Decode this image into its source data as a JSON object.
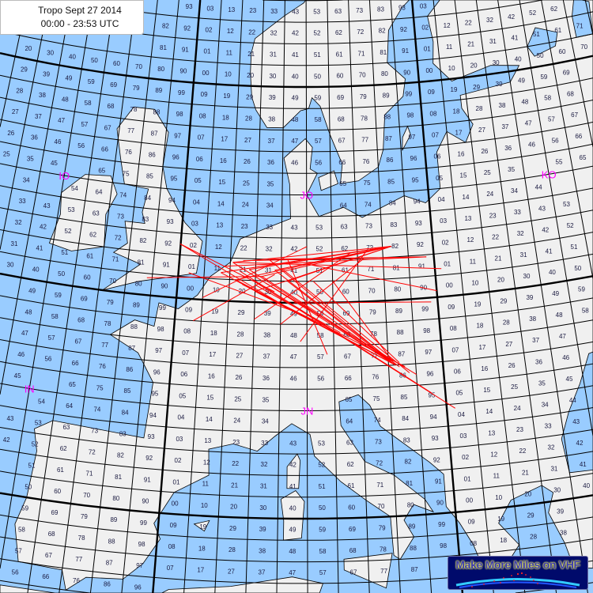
{
  "title": {
    "line1": "Tropo Sept 27 2014",
    "line2": "00:00 - 23:53 UTC"
  },
  "logo": {
    "text": "Make More Miles on VHF"
  },
  "colors": {
    "sea": "#99ccff",
    "land": "#f0f0f0",
    "grid": "#000000",
    "field_label": "#ff00ff",
    "path": "#ff0000",
    "square_label": "#1a1a40"
  },
  "grid": {
    "lon_min": -30,
    "lon_max": 40,
    "lat_min": 34,
    "lat_max": 72,
    "square_lon_deg": 2,
    "square_lat_deg": 1,
    "field_lon_deg": 20,
    "field_lat_deg": 10
  },
  "fields": [
    {
      "label": "IO",
      "lon": -10,
      "lat": 55
    },
    {
      "label": "JO",
      "lon": 10,
      "lat": 55
    },
    {
      "label": "KO",
      "lon": 30,
      "lat": 55
    },
    {
      "label": "IN",
      "lon": -10,
      "lat": 45
    },
    {
      "label": "JN",
      "lon": 10,
      "lat": 45
    }
  ],
  "land": [
    {
      "name": "europe",
      "points": [
        [
          -9.5,
          38.7
        ],
        [
          -9,
          40
        ],
        [
          -8.8,
          42.2
        ],
        [
          -9.2,
          43.2
        ],
        [
          -8,
          43.7
        ],
        [
          -1.5,
          43.4
        ],
        [
          -1.2,
          46
        ],
        [
          -2.5,
          47.3
        ],
        [
          -4.7,
          48
        ],
        [
          -3,
          48.8
        ],
        [
          -1.5,
          48.6
        ],
        [
          -1.3,
          49.7
        ],
        [
          0.2,
          49.5
        ],
        [
          1.6,
          50.2
        ],
        [
          2.5,
          51.1
        ],
        [
          4,
          51.8
        ],
        [
          4.7,
          52.9
        ],
        [
          7,
          53.5
        ],
        [
          8.7,
          53.9
        ],
        [
          8.6,
          55.5
        ],
        [
          8.1,
          56.7
        ],
        [
          9.9,
          57.6
        ],
        [
          10.5,
          57.2
        ],
        [
          10.3,
          56.2
        ],
        [
          10.9,
          56
        ],
        [
          10,
          55
        ],
        [
          11,
          54
        ],
        [
          13,
          54.4
        ],
        [
          14.5,
          53.9
        ],
        [
          18,
          54.8
        ],
        [
          19.7,
          54.4
        ],
        [
          21,
          55
        ],
        [
          21,
          56.7
        ],
        [
          22,
          57.6
        ],
        [
          23.5,
          57
        ],
        [
          24.3,
          57.8
        ],
        [
          23.5,
          58.6
        ],
        [
          23.5,
          59.2
        ],
        [
          28,
          59.5
        ],
        [
          29,
          60.2
        ],
        [
          26.5,
          60.4
        ],
        [
          22.9,
          59.9
        ],
        [
          21.4,
          60.8
        ],
        [
          21.6,
          61.8
        ],
        [
          21.3,
          63
        ],
        [
          23,
          63.9
        ],
        [
          25.3,
          65
        ],
        [
          24,
          65.8
        ],
        [
          22,
          65.6
        ],
        [
          21.3,
          64.5
        ],
        [
          19,
          63.5
        ],
        [
          17.6,
          62.5
        ],
        [
          17.3,
          61
        ],
        [
          18.8,
          60.2
        ],
        [
          18.5,
          59.4
        ],
        [
          16.8,
          58.6
        ],
        [
          16.5,
          57
        ],
        [
          16,
          56.2
        ],
        [
          14.3,
          55.6
        ],
        [
          12.8,
          55.5
        ],
        [
          13,
          56.4
        ],
        [
          12,
          57.8
        ],
        [
          11.2,
          59.1
        ],
        [
          10.5,
          59.5
        ],
        [
          10.2,
          59
        ],
        [
          9.5,
          58.9
        ],
        [
          8,
          58.1
        ],
        [
          6.6,
          58.1
        ],
        [
          5.6,
          58.9
        ],
        [
          5.2,
          59.5
        ],
        [
          5,
          60.6
        ],
        [
          5,
          61.5
        ],
        [
          5.3,
          62.2
        ],
        [
          6.5,
          62.7
        ],
        [
          8,
          63.3
        ],
        [
          9.8,
          63.9
        ],
        [
          11,
          64.9
        ],
        [
          12.5,
          66
        ],
        [
          14,
          67.5
        ],
        [
          15,
          68.5
        ],
        [
          17,
          69.5
        ],
        [
          19,
          70
        ],
        [
          22,
          70.5
        ],
        [
          25,
          71
        ],
        [
          28,
          71
        ],
        [
          31,
          70
        ],
        [
          33,
          69.5
        ],
        [
          36,
          69
        ],
        [
          41,
          67.5
        ],
        [
          45,
          68
        ],
        [
          50,
          68
        ],
        [
          50,
          30
        ],
        [
          36,
          30
        ],
        [
          36,
          36.7
        ],
        [
          32.5,
          36.1
        ],
        [
          30.5,
          36.5
        ],
        [
          28.2,
          36.7
        ],
        [
          27.3,
          37
        ],
        [
          27,
          38
        ],
        [
          26.2,
          39.5
        ],
        [
          26.7,
          40.4
        ],
        [
          26,
          40.8
        ],
        [
          23.8,
          40.3
        ],
        [
          22.8,
          39.3
        ],
        [
          24,
          38.2
        ],
        [
          23.2,
          37.5
        ],
        [
          22.5,
          36.4
        ],
        [
          21.7,
          36.8
        ],
        [
          21,
          38.4
        ],
        [
          20.2,
          39.5
        ],
        [
          19.4,
          40.3
        ],
        [
          19.4,
          41.8
        ],
        [
          18.5,
          42.4
        ],
        [
          16.5,
          43.5
        ],
        [
          15.2,
          44.2
        ],
        [
          14.5,
          45.2
        ],
        [
          13.7,
          45.7
        ],
        [
          12.3,
          45.4
        ],
        [
          12.4,
          44.3
        ],
        [
          14,
          42.6
        ],
        [
          16,
          41.9
        ],
        [
          18,
          40.7
        ],
        [
          18.5,
          40.1
        ],
        [
          17.2,
          40.5
        ],
        [
          16.5,
          39.8
        ],
        [
          17.1,
          39
        ],
        [
          16.1,
          38
        ],
        [
          15.7,
          38.2
        ],
        [
          15.6,
          40
        ],
        [
          14,
          40.8
        ],
        [
          12.3,
          41.7
        ],
        [
          10.5,
          42.9
        ],
        [
          10.2,
          43.9
        ],
        [
          8.9,
          44.4
        ],
        [
          7.7,
          43.8
        ],
        [
          6.5,
          43.1
        ],
        [
          4.8,
          43.4
        ],
        [
          3.1,
          43.1
        ],
        [
          3.2,
          41.9
        ],
        [
          0.9,
          41
        ],
        [
          -0.3,
          39.5
        ],
        [
          0.2,
          38.8
        ],
        [
          -0.8,
          37.6
        ],
        [
          -2,
          36.8
        ],
        [
          -4.4,
          36.7
        ],
        [
          -5.6,
          36
        ],
        [
          -6,
          36.9
        ],
        [
          -8.9,
          37
        ]
      ]
    },
    {
      "name": "great-britain",
      "points": [
        [
          -5.7,
          50
        ],
        [
          -3,
          50.6
        ],
        [
          1.4,
          51.2
        ],
        [
          1.7,
          52.7
        ],
        [
          0.2,
          53.5
        ],
        [
          -1.5,
          55
        ],
        [
          -2,
          56
        ],
        [
          -1.8,
          57.6
        ],
        [
          -3.2,
          58.6
        ],
        [
          -5,
          58.6
        ],
        [
          -6.2,
          57.5
        ],
        [
          -5.6,
          56.2
        ],
        [
          -5,
          55
        ],
        [
          -3,
          54.9
        ],
        [
          -3.3,
          53.8
        ],
        [
          -3,
          53.3
        ],
        [
          -4.6,
          53.3
        ],
        [
          -4.2,
          52.3
        ],
        [
          -5.2,
          51.8
        ],
        [
          -3,
          51.4
        ]
      ]
    },
    {
      "name": "ireland",
      "points": [
        [
          -6,
          52
        ],
        [
          -6.2,
          53.5
        ],
        [
          -5.5,
          54.5
        ],
        [
          -6.2,
          55.3
        ],
        [
          -8.3,
          55.2
        ],
        [
          -10,
          54.2
        ],
        [
          -9.8,
          53.2
        ],
        [
          -10.3,
          51.8
        ],
        [
          -8.5,
          51.6
        ]
      ]
    },
    {
      "name": "corsica",
      "points": [
        [
          8.6,
          41.4
        ],
        [
          9.4,
          41.4
        ],
        [
          9.5,
          42.7
        ],
        [
          9.3,
          43
        ],
        [
          8.6,
          42.4
        ]
      ]
    },
    {
      "name": "sardinia",
      "points": [
        [
          8.4,
          39
        ],
        [
          9.6,
          39.1
        ],
        [
          9.8,
          40.8
        ],
        [
          9.2,
          41.3
        ],
        [
          8.2,
          40.9
        ],
        [
          8.4,
          39.9
        ]
      ]
    },
    {
      "name": "sicily",
      "points": [
        [
          12.4,
          38.1
        ],
        [
          15.6,
          38.3
        ],
        [
          15.1,
          36.7
        ],
        [
          12.4,
          37.6
        ]
      ]
    },
    {
      "name": "mallorca",
      "points": [
        [
          2.4,
          39.6
        ],
        [
          3.4,
          39.8
        ],
        [
          3.1,
          39.3
        ]
      ]
    },
    {
      "name": "gotland",
      "points": [
        [
          18.1,
          56.9
        ],
        [
          18.9,
          57.6
        ],
        [
          18.7,
          58
        ],
        [
          18.2,
          57.5
        ]
      ]
    },
    {
      "name": "zealand",
      "points": [
        [
          11.2,
          55.2
        ],
        [
          12.6,
          55.5
        ],
        [
          12.3,
          56.1
        ],
        [
          11,
          55.8
        ]
      ]
    },
    {
      "name": "africa",
      "points": [
        [
          -10,
          35.8
        ],
        [
          -6,
          35.8
        ],
        [
          -2,
          35.1
        ],
        [
          1,
          36.5
        ],
        [
          5,
          36.8
        ],
        [
          9,
          37.3
        ],
        [
          11,
          37
        ],
        [
          10.5,
          36
        ],
        [
          11,
          35
        ],
        [
          11,
          30
        ],
        [
          -10,
          30
        ]
      ]
    }
  ],
  "water": [
    {
      "name": "black-sea",
      "points": [
        [
          28,
          41.2
        ],
        [
          31,
          41.1
        ],
        [
          33,
          42
        ],
        [
          35,
          42
        ],
        [
          38,
          41
        ],
        [
          41.5,
          41.5
        ],
        [
          41.5,
          42.5
        ],
        [
          39,
          44.3
        ],
        [
          37.5,
          44.8
        ],
        [
          36.5,
          45.3
        ],
        [
          35,
          45
        ],
        [
          33.5,
          44.5
        ],
        [
          33,
          46
        ],
        [
          31.5,
          46.6
        ],
        [
          30.7,
          46.5
        ],
        [
          29.7,
          45.2
        ],
        [
          28.6,
          44
        ],
        [
          27.8,
          42.8
        ]
      ]
    },
    {
      "name": "lake-ladoga",
      "points": [
        [
          30.5,
          60.5
        ],
        [
          32.5,
          60.8
        ],
        [
          32.9,
          61.4
        ],
        [
          31,
          61.8
        ],
        [
          30,
          61
        ]
      ]
    },
    {
      "name": "lake-onega",
      "points": [
        [
          34.5,
          61
        ],
        [
          36,
          61
        ],
        [
          36.3,
          62.5
        ],
        [
          35,
          62.8
        ],
        [
          34.5,
          62
        ]
      ]
    }
  ],
  "paths": [
    [
      [
        3.3,
        51.3
      ],
      [
        16.5,
        47.0
      ]
    ],
    [
      [
        4.5,
        51.0
      ],
      [
        16.5,
        47.0
      ]
    ],
    [
      [
        5.5,
        51.5
      ],
      [
        16.5,
        47.0
      ]
    ],
    [
      [
        6.5,
        51.2
      ],
      [
        16.2,
        47.2
      ]
    ],
    [
      [
        7.5,
        51.5
      ],
      [
        16.8,
        46.9
      ]
    ],
    [
      [
        6.0,
        50.5
      ],
      [
        16.5,
        47.0
      ]
    ],
    [
      [
        8.5,
        51.0
      ],
      [
        16.5,
        47.0
      ]
    ],
    [
      [
        5.0,
        50.8
      ],
      [
        17.2,
        46.9
      ]
    ],
    [
      [
        4.2,
        51.8
      ],
      [
        16.5,
        47.0
      ]
    ],
    [
      [
        7.0,
        52.0
      ],
      [
        16.0,
        47.3
      ]
    ],
    [
      [
        9.2,
        50.4
      ],
      [
        16.5,
        47.0
      ]
    ],
    [
      [
        10.5,
        51.0
      ],
      [
        16.8,
        47.1
      ]
    ],
    [
      [
        6.8,
        50.9
      ],
      [
        18.0,
        46.5
      ]
    ],
    [
      [
        5.8,
        51.0
      ],
      [
        20.6,
        44.8
      ]
    ],
    [
      [
        4.8,
        51.4
      ],
      [
        19.0,
        45.6
      ]
    ],
    [
      [
        8.0,
        51.6
      ],
      [
        17.5,
        46.6
      ]
    ],
    [
      [
        3.3,
        51.3
      ],
      [
        16.7,
        52.5
      ]
    ],
    [
      [
        4.5,
        51.0
      ],
      [
        16.7,
        52.5
      ]
    ],
    [
      [
        5.5,
        51.5
      ],
      [
        16.7,
        52.5
      ]
    ],
    [
      [
        6.5,
        51.2
      ],
      [
        16.7,
        52.5
      ]
    ],
    [
      [
        7.5,
        51.5
      ],
      [
        16.7,
        52.5
      ]
    ],
    [
      [
        4.2,
        51.8
      ],
      [
        16.7,
        52.5
      ]
    ],
    [
      [
        8.5,
        51.0
      ],
      [
        16.7,
        52.5
      ]
    ],
    [
      [
        6.0,
        50.5
      ],
      [
        16.7,
        52.5
      ]
    ],
    [
      [
        3.5,
        51.6
      ],
      [
        19.4,
        51.9
      ]
    ],
    [
      [
        5.0,
        51.9
      ],
      [
        19.4,
        51.9
      ]
    ],
    [
      [
        7.0,
        52.0
      ],
      [
        19.4,
        51.9
      ]
    ],
    [
      [
        4.2,
        51.8
      ],
      [
        20.5,
        51.3
      ]
    ],
    [
      [
        -2.4,
        50.8
      ],
      [
        6.5,
        51.2
      ]
    ],
    [
      [
        -0.04,
        52.5
      ],
      [
        9.0,
        49.6
      ]
    ],
    [
      [
        -0.04,
        52.5
      ],
      [
        7.5,
        50.5
      ]
    ],
    [
      [
        1.4,
        49.0
      ],
      [
        7.5,
        51.3
      ]
    ],
    [
      [
        0.8,
        51.2
      ],
      [
        9.5,
        49.5
      ]
    ],
    [
      [
        2.0,
        50.1
      ],
      [
        10.0,
        52.6
      ]
    ],
    [
      [
        6.0,
        49.2
      ],
      [
        13.5,
        52.3
      ]
    ],
    [
      [
        8.0,
        49.0
      ],
      [
        14.5,
        52.0
      ]
    ],
    [
      [
        10.0,
        51.8
      ],
      [
        20.0,
        50.3
      ]
    ],
    [
      [
        9.0,
        50.0
      ],
      [
        19.5,
        49.8
      ]
    ],
    [
      [
        12.0,
        51.0
      ],
      [
        16.5,
        47.0
      ]
    ],
    [
      [
        9.5,
        48.2
      ],
      [
        14.8,
        52.4
      ]
    ],
    [
      [
        6.0,
        50.8
      ],
      [
        12.5,
        48.6
      ]
    ],
    [
      [
        8.5,
        52.0
      ],
      [
        11.5,
        47.6
      ]
    ]
  ]
}
